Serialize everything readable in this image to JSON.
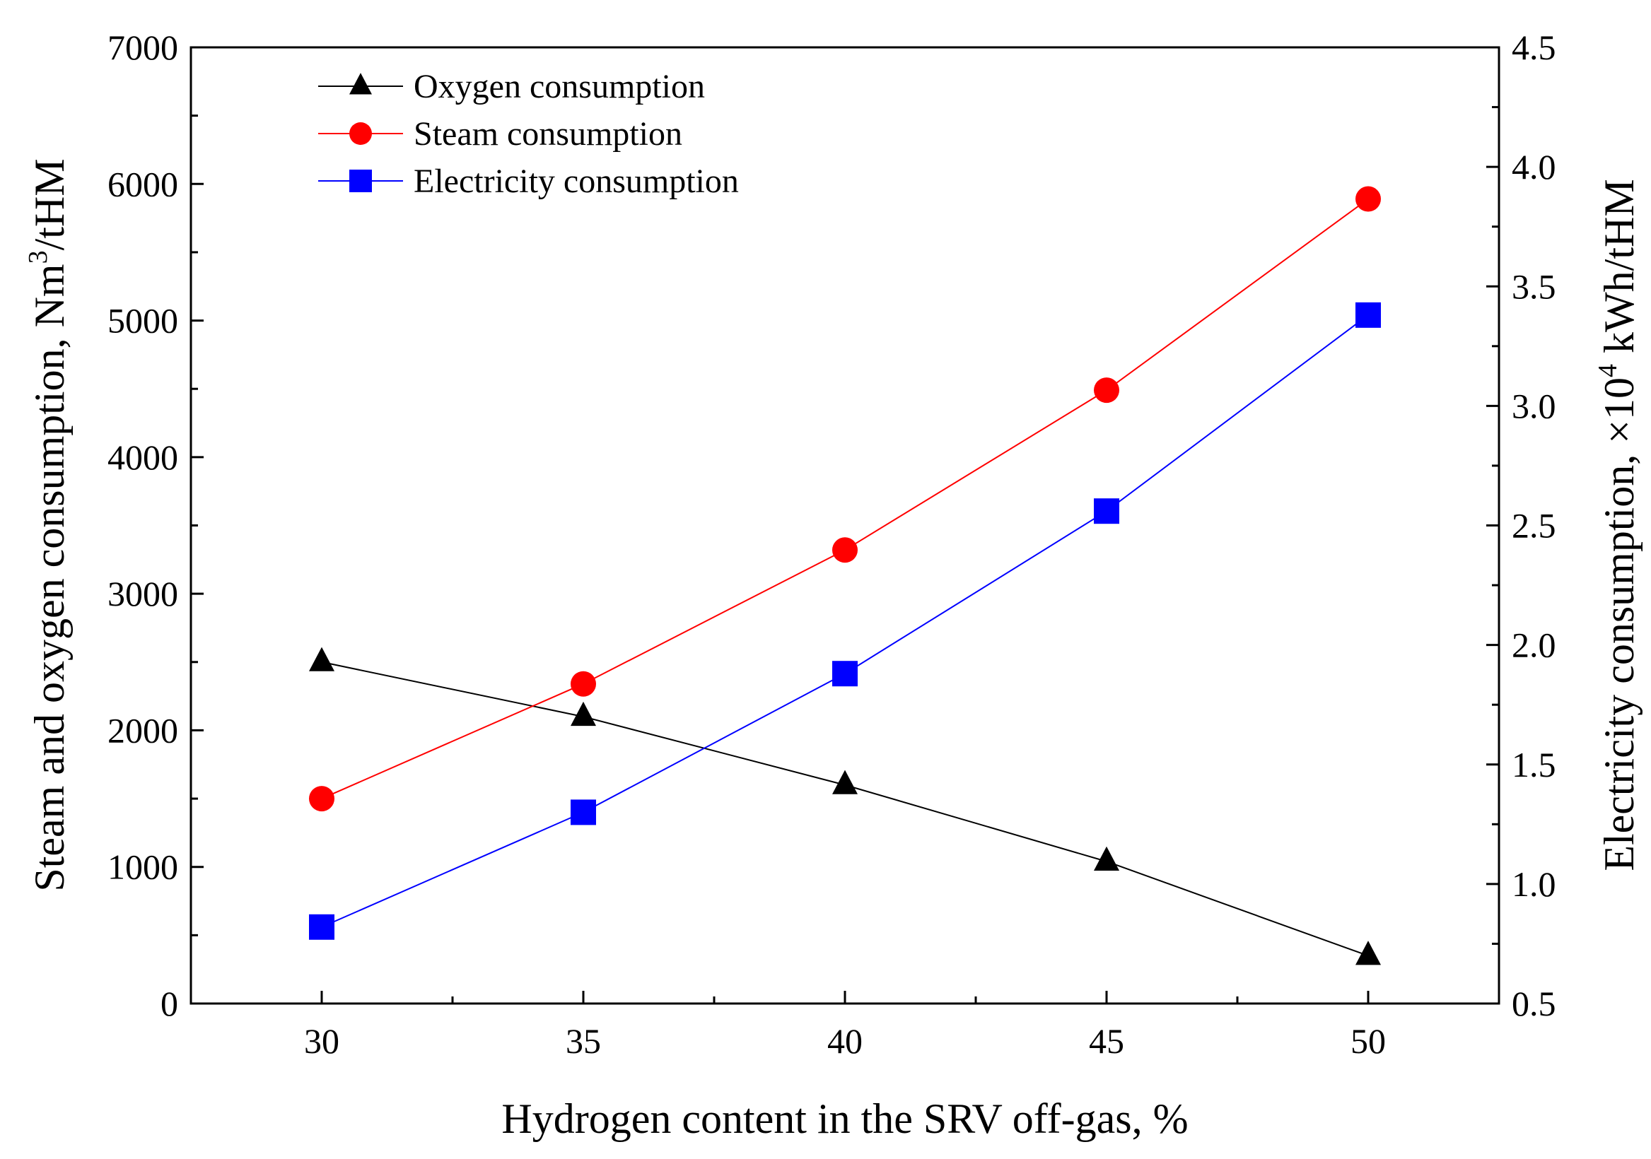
{
  "chart_data": {
    "type": "line",
    "title": "",
    "xlabel": "Hydrogen content in the SRV off-gas, %",
    "ylabel_left": {
      "text": "Steam and oxygen consumption, Nm",
      "sup": "3",
      "suffix": "/tHM"
    },
    "ylabel_right": {
      "text": "Electricity consumption, ×10",
      "sup": "4",
      "suffix": " kWh/tHM"
    },
    "x": [
      30,
      35,
      40,
      45,
      50
    ],
    "xlim": [
      27.5,
      52.5
    ],
    "x_ticks": [
      "30",
      "35",
      "40",
      "45",
      "50"
    ],
    "ylim_left": [
      0,
      7000
    ],
    "y_left_ticks": [
      "0",
      "1000",
      "2000",
      "3000",
      "4000",
      "5000",
      "6000",
      "7000"
    ],
    "ylim_right": [
      0.5,
      4.5
    ],
    "y_right_ticks": [
      "0.5",
      "1.0",
      "1.5",
      "2.0",
      "2.5",
      "3.0",
      "3.5",
      "4.0",
      "4.5"
    ],
    "grid": false,
    "legend_position": "top-left",
    "series": [
      {
        "name": "Oxygen consumption",
        "axis": "left",
        "marker": "triangle",
        "color": "#000000",
        "values": [
          2500,
          2100,
          1600,
          1040,
          350
        ]
      },
      {
        "name": "Steam consumption",
        "axis": "left",
        "marker": "circle",
        "color": "#ff0000",
        "values": [
          1500,
          2340,
          3320,
          4490,
          5890
        ]
      },
      {
        "name": "Electricity consumption",
        "axis": "right",
        "marker": "square",
        "color": "#0000ff",
        "values": [
          0.82,
          1.3,
          1.88,
          2.56,
          3.38
        ]
      }
    ]
  }
}
